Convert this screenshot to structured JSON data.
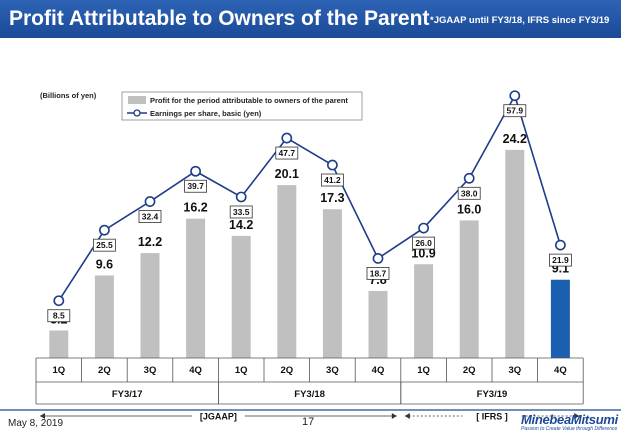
{
  "header": {
    "title": "Profit Attributable to Owners of the Parent",
    "note": "*JGAAP until FY3/18, IFRS since FY3/19"
  },
  "chart_data": {
    "type": "bar",
    "unit_label": "(Billions of yen)",
    "categories": [
      "1Q",
      "2Q",
      "3Q",
      "4Q",
      "1Q",
      "2Q",
      "3Q",
      "4Q",
      "1Q",
      "2Q",
      "3Q",
      "4Q"
    ],
    "groups": [
      {
        "label": "FY3/17",
        "start": 0,
        "end": 3
      },
      {
        "label": "FY3/18",
        "start": 4,
        "end": 7
      },
      {
        "label": "FY3/19",
        "start": 8,
        "end": 11
      }
    ],
    "series": [
      {
        "name": "Profit for the period attributable to owners of the parent",
        "kind": "bar",
        "values": [
          3.2,
          9.6,
          12.2,
          16.2,
          14.2,
          20.1,
          17.3,
          7.8,
          10.9,
          16.0,
          24.2,
          9.1
        ]
      },
      {
        "name": "Earnings per share, basic (yen)",
        "kind": "line",
        "values": [
          8.5,
          25.5,
          32.4,
          39.7,
          33.5,
          47.7,
          41.2,
          18.7,
          26.0,
          38.0,
          57.9,
          21.9
        ]
      }
    ],
    "bar_labels": [
      "3.2",
      "9.6",
      "12.2",
      "16.2",
      "14.2",
      "20.1",
      "17.3",
      "7.8",
      "10.9",
      "16.0",
      "24.2",
      "9.1"
    ],
    "line_labels": [
      "8.5",
      "25.5",
      "32.4",
      "39.7",
      "33.5",
      "47.7",
      "41.2",
      "18.7",
      "26.0",
      "38.0",
      "57.9",
      "21.9"
    ],
    "highlight_index": 11,
    "bar_ylim": [
      0,
      25
    ],
    "line_ylim": [
      0,
      65
    ],
    "standards": [
      {
        "label": "[JGAAP]",
        "start": 0,
        "end": 7
      },
      {
        "label": "[ IFRS ]",
        "start": 8,
        "end": 11
      }
    ],
    "colors": {
      "bar": "#c0c0c0",
      "highlight_bar": "#1b5fb0",
      "line": "#1f3c88",
      "marker_fill": "#ffffff"
    }
  },
  "footer": {
    "date": "May 8, 2019",
    "page": "17",
    "logo": "MinebeaMitsumi",
    "tagline": "Passion to Create Value through Difference"
  }
}
